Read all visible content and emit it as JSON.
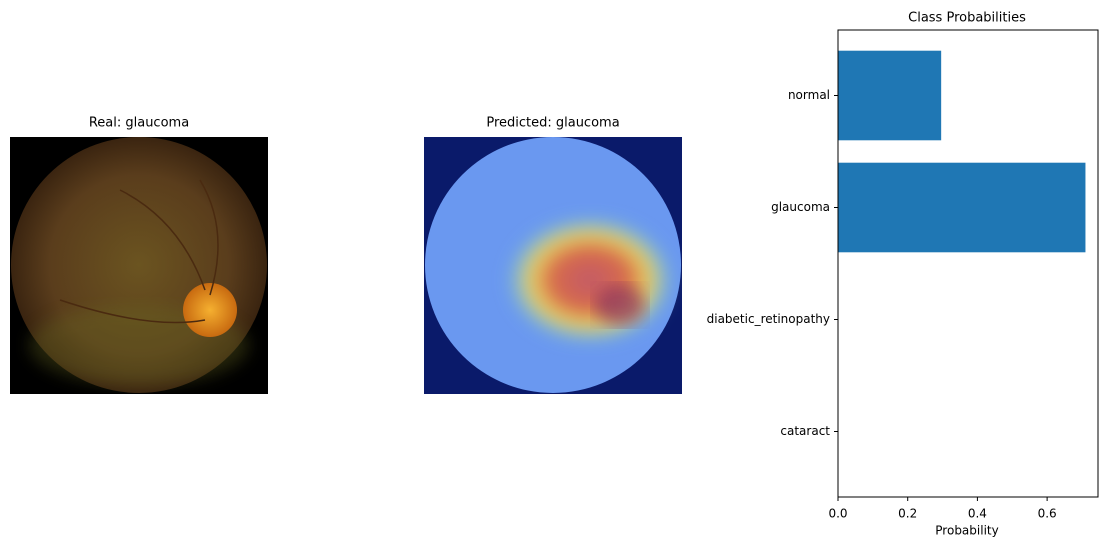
{
  "images": [
    {
      "title": "Real: glaucoma"
    },
    {
      "title": "Predicted: glaucoma"
    }
  ],
  "chart_data": {
    "type": "barh",
    "title": "Class Probabilities",
    "xlabel": "Probability",
    "categories": [
      "normal",
      "glaucoma",
      "diabetic_retinopathy",
      "cataract"
    ],
    "values": [
      0.296,
      0.71,
      0,
      0
    ],
    "color": "#1f77b4",
    "xlim": [
      0,
      0.746
    ],
    "xticks": [
      {
        "value": 0,
        "label": "0.0"
      },
      0.2,
      0.4,
      0.6
    ],
    "grid": false
  }
}
